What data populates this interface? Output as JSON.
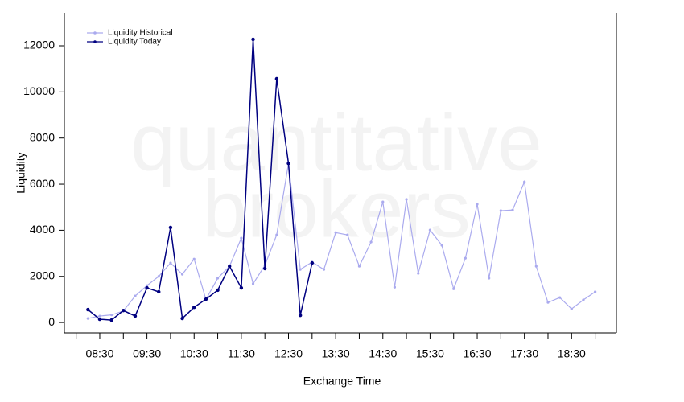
{
  "chart_data": {
    "type": "line",
    "watermark": [
      "quantitative",
      "brokers"
    ],
    "xlabel": "Exchange Time",
    "ylabel": "Liquidity",
    "x": [
      495,
      510,
      525,
      540,
      555,
      570,
      585,
      600,
      615,
      630,
      645,
      660,
      675,
      690,
      705,
      720,
      735,
      750,
      765,
      780,
      795,
      810,
      825,
      840,
      855,
      870,
      885,
      900,
      915,
      930,
      945,
      960,
      975,
      990,
      1005,
      1020,
      1035,
      1050,
      1065,
      1080,
      1095,
      1110,
      1125,
      1140
    ],
    "xlim": [
      465,
      1167
    ],
    "xticks": [
      {
        "value": 510,
        "label": "08:30"
      },
      {
        "value": 570,
        "label": "09:30"
      },
      {
        "value": 630,
        "label": "10:30"
      },
      {
        "value": 690,
        "label": "11:30"
      },
      {
        "value": 750,
        "label": "12:30"
      },
      {
        "value": 810,
        "label": "13:30"
      },
      {
        "value": 870,
        "label": "14:30"
      },
      {
        "value": 930,
        "label": "15:30"
      },
      {
        "value": 990,
        "label": "16:30"
      },
      {
        "value": 1050,
        "label": "17:30"
      },
      {
        "value": 1110,
        "label": "18:30"
      }
    ],
    "x_minor_ticks": [
      480,
      540,
      600,
      660,
      720,
      780,
      840,
      900,
      960,
      1020,
      1080,
      1140
    ],
    "ylim": [
      -450,
      13430
    ],
    "yticks": [
      0,
      2000,
      4000,
      6000,
      8000,
      10000,
      12000
    ],
    "legend": "upper left",
    "series": [
      {
        "name": "Liquidity Historical",
        "color": "#aaaaee",
        "values": [
          175,
          280,
          330,
          500,
          1150,
          1600,
          2000,
          2580,
          2090,
          2750,
          1000,
          1920,
          2440,
          3660,
          1680,
          2480,
          3800,
          6900,
          2300,
          2620,
          2300,
          3900,
          3800,
          2440,
          3490,
          5230,
          1530,
          5340,
          2130,
          4010,
          3350,
          1460,
          2790,
          5130,
          1920,
          4850,
          4880,
          6100,
          2440,
          870,
          1080,
          590,
          980,
          1330
        ]
      },
      {
        "name": "Liquidity Today",
        "color": "#000080",
        "values": [
          560,
          140,
          105,
          520,
          280,
          1500,
          1330,
          4120,
          175,
          660,
          1010,
          1400,
          2440,
          1500,
          12280,
          2340,
          10570,
          6900,
          310,
          2580,
          null,
          null,
          null,
          null,
          null,
          null,
          null,
          null,
          null,
          null,
          null,
          null,
          null,
          null,
          null,
          null,
          null,
          null,
          null,
          null,
          null,
          null,
          null,
          null
        ]
      }
    ]
  }
}
